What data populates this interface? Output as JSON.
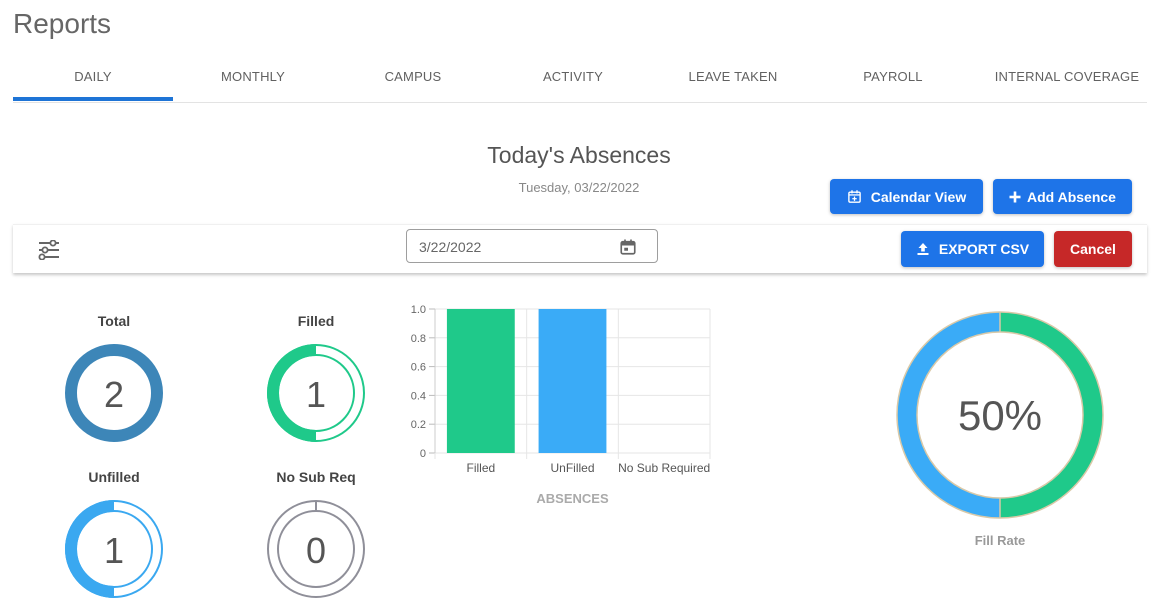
{
  "page": {
    "title": "Reports"
  },
  "tabs": [
    {
      "label": "DAILY",
      "active": true
    },
    {
      "label": "MONTHLY"
    },
    {
      "label": "CAMPUS"
    },
    {
      "label": "ACTIVITY"
    },
    {
      "label": "LEAVE TAKEN"
    },
    {
      "label": "PAYROLL"
    },
    {
      "label": "INTERNAL COVERAGE"
    }
  ],
  "section": {
    "title": "Today's Absences",
    "date": "Tuesday, 03/22/2022"
  },
  "buttons": {
    "calendar_view": "Calendar View",
    "add_absence": "Add Absence",
    "export_csv": "EXPORT CSV",
    "cancel": "Cancel"
  },
  "toolbar": {
    "date_value": "3/22/2022"
  },
  "stats": {
    "total": {
      "label": "Total",
      "value": "2",
      "color": "#3d86b8",
      "fraction": 1.0
    },
    "filled": {
      "label": "Filled",
      "value": "1",
      "color": "#1fc98a",
      "fraction": 0.5
    },
    "unfilled": {
      "label": "Unfilled",
      "value": "1",
      "color": "#3aa8f0",
      "fraction": 0.5
    },
    "no_sub": {
      "label": "No Sub Req",
      "value": "0",
      "color": "#8f8f99",
      "fraction": 0.0
    }
  },
  "chart_data": [
    {
      "type": "bar",
      "categories": [
        "Filled",
        "UnFilled",
        "No Sub Required"
      ],
      "values": [
        1,
        1,
        0
      ],
      "colors": [
        "#1fc98a",
        "#3aabf7",
        "#cccccc"
      ],
      "xlabel": "ABSENCES",
      "ylim": [
        0,
        1.0
      ],
      "yticks": [
        "0",
        "0.2",
        "0.4",
        "0.6",
        "0.8",
        "1.0"
      ],
      "grid": true
    },
    {
      "type": "pie",
      "categories": [
        "Filled",
        "UnFilled"
      ],
      "values": [
        50,
        50
      ],
      "colors": [
        "#1fc98a",
        "#3aabf7"
      ],
      "center_label": "50%",
      "label": "Fill Rate"
    }
  ]
}
